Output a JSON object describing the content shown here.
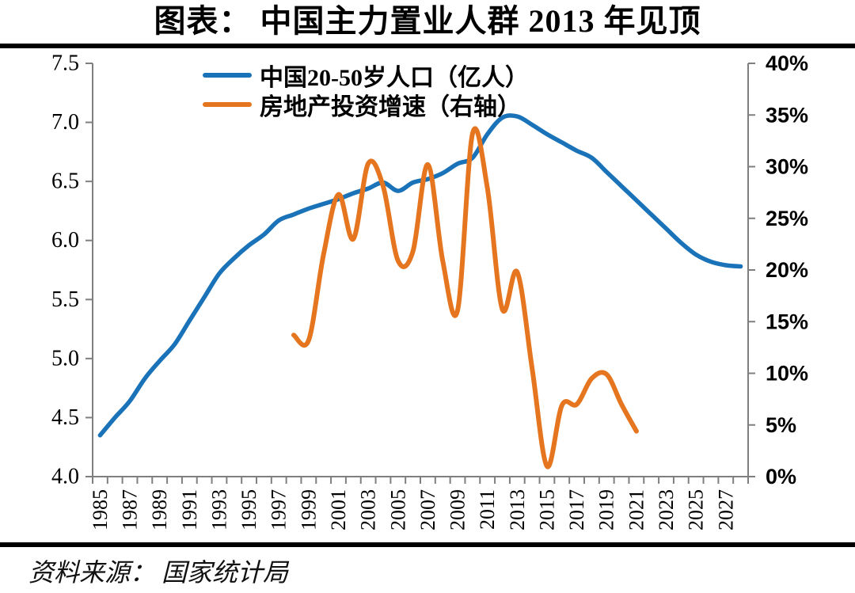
{
  "page": {
    "title": "图表： 中国主力置业人群 2013 年见顶",
    "source": "资料来源： 国家统计局"
  },
  "colors": {
    "population_line": "#1a73b8",
    "investment_line": "#e5761f",
    "axis_line": "#7f7f7f",
    "tick_mark": "#7f7f7f",
    "rule": "#000000",
    "text": "#000000"
  },
  "legend": {
    "items": [
      {
        "label": "中国20-50岁人口（亿人）",
        "color": "#1a73b8"
      },
      {
        "label": "房地产投资增速（右轴）",
        "color": "#e5761f"
      }
    ]
  },
  "chart_data": {
    "type": "line",
    "title": "图表： 中国主力置业人群 2013 年见顶",
    "x": [
      1985,
      1986,
      1987,
      1988,
      1989,
      1990,
      1991,
      1992,
      1993,
      1994,
      1995,
      1996,
      1997,
      1998,
      1999,
      2000,
      2001,
      2002,
      2003,
      2004,
      2005,
      2006,
      2007,
      2008,
      2009,
      2010,
      2011,
      2012,
      2013,
      2014,
      2015,
      2016,
      2017,
      2018,
      2019,
      2020,
      2021,
      2022,
      2023,
      2024,
      2025,
      2026,
      2027,
      2028
    ],
    "x_tick_labels": [
      "1985",
      "1987",
      "1989",
      "1991",
      "1993",
      "1995",
      "1997",
      "1999",
      "2001",
      "2003",
      "2005",
      "2007",
      "2009",
      "2011",
      "2013",
      "2015",
      "2017",
      "2019",
      "2021",
      "2023",
      "2025",
      "2027"
    ],
    "series": [
      {
        "name": "中国20-50岁人口（亿人）",
        "axis": "left",
        "color": "#1a73b8",
        "values": [
          4.35,
          4.5,
          4.64,
          4.83,
          4.98,
          5.12,
          5.32,
          5.52,
          5.72,
          5.85,
          5.96,
          6.05,
          6.17,
          6.22,
          6.27,
          6.31,
          6.35,
          6.4,
          6.44,
          6.49,
          6.42,
          6.49,
          6.52,
          6.57,
          6.65,
          6.7,
          6.9,
          7.04,
          7.05,
          6.98,
          6.9,
          6.83,
          6.76,
          6.7,
          6.58,
          6.46,
          6.34,
          6.22,
          6.1,
          5.98,
          5.88,
          5.82,
          5.79,
          5.78
        ]
      },
      {
        "name": "房地产投资增速（右轴）",
        "axis": "right",
        "color": "#e5761f",
        "values": [
          null,
          null,
          null,
          null,
          null,
          null,
          null,
          null,
          null,
          null,
          null,
          null,
          null,
          13.7,
          13.2,
          21.5,
          27.3,
          23.0,
          30.3,
          28.1,
          20.9,
          21.8,
          30.2,
          20.9,
          16.1,
          33.2,
          27.9,
          16.2,
          19.8,
          10.5,
          1.0,
          6.9,
          7.0,
          9.5,
          9.9,
          7.0,
          4.4,
          null,
          null,
          null,
          null,
          null,
          null,
          null
        ]
      }
    ],
    "left_axis": {
      "min": 4.0,
      "max": 7.5,
      "step": 0.5,
      "tick_labels": [
        "7.5",
        "7.0",
        "6.5",
        "6.0",
        "5.5",
        "5.0",
        "4.5",
        "4.0"
      ]
    },
    "right_axis": {
      "min": 0,
      "max": 40,
      "step": 5,
      "tick_labels": [
        "40%",
        "35%",
        "30%",
        "25%",
        "20%",
        "15%",
        "10%",
        "5%",
        "0%"
      ]
    },
    "grid": false,
    "legend_position": "top-left-inside",
    "xlabel": "",
    "ylabel_left": "亿人",
    "ylabel_right": "%"
  }
}
